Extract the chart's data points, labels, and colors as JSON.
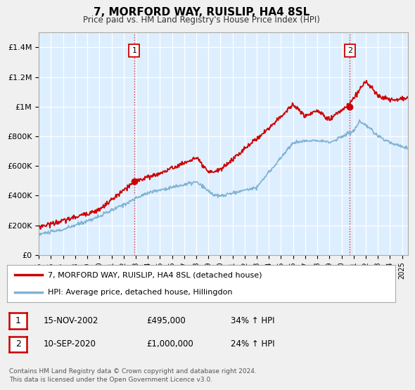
{
  "title": "7, MORFORD WAY, RUISLIP, HA4 8SL",
  "subtitle": "Price paid vs. HM Land Registry's House Price Index (HPI)",
  "ylabel_ticks": [
    "£0",
    "£200K",
    "£400K",
    "£600K",
    "£800K",
    "£1M",
    "£1.2M",
    "£1.4M"
  ],
  "ytick_vals": [
    0,
    200000,
    400000,
    600000,
    800000,
    1000000,
    1200000,
    1400000
  ],
  "ylim": [
    0,
    1500000
  ],
  "xlim_start": 1995.0,
  "xlim_end": 2025.5,
  "sale1_x": 2002.88,
  "sale1_y": 495000,
  "sale1_label": "1",
  "sale2_x": 2020.69,
  "sale2_y": 1000000,
  "sale2_label": "2",
  "legend_line1": "7, MORFORD WAY, RUISLIP, HA4 8SL (detached house)",
  "legend_line2": "HPI: Average price, detached house, Hillingdon",
  "table_row1": [
    "1",
    "15-NOV-2002",
    "£495,000",
    "34% ↑ HPI"
  ],
  "table_row2": [
    "2",
    "10-SEP-2020",
    "£1,000,000",
    "24% ↑ HPI"
  ],
  "footer": "Contains HM Land Registry data © Crown copyright and database right 2024.\nThis data is licensed under the Open Government Licence v3.0.",
  "line_color_red": "#cc0000",
  "line_color_blue": "#7fb3d3",
  "plot_bg_color": "#ddeeff",
  "background_color": "#f0f0f0",
  "xticks": [
    1995,
    1996,
    1997,
    1998,
    1999,
    2000,
    2001,
    2002,
    2003,
    2004,
    2005,
    2006,
    2007,
    2008,
    2009,
    2010,
    2011,
    2012,
    2013,
    2014,
    2015,
    2016,
    2017,
    2018,
    2019,
    2020,
    2021,
    2022,
    2023,
    2024,
    2025
  ]
}
